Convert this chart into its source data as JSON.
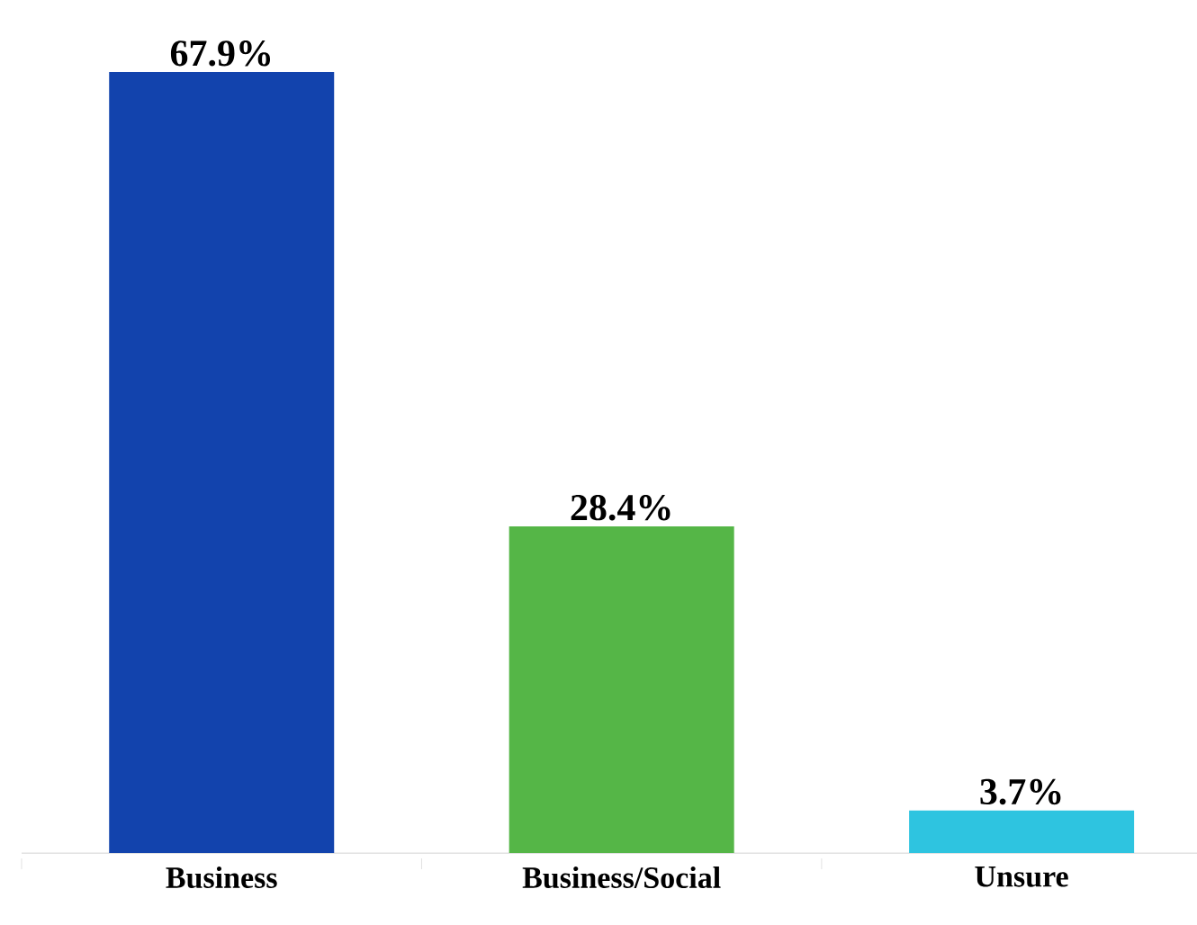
{
  "chart_data": {
    "type": "bar",
    "categories": [
      "Business",
      "Business/Social",
      "Unsure"
    ],
    "values": [
      67.9,
      28.4,
      3.7
    ],
    "colors": [
      "#1243ad",
      "#55b647",
      "#2ec4e0"
    ],
    "value_labels": [
      "67.9%",
      "28.4%",
      "3.7%"
    ]
  }
}
